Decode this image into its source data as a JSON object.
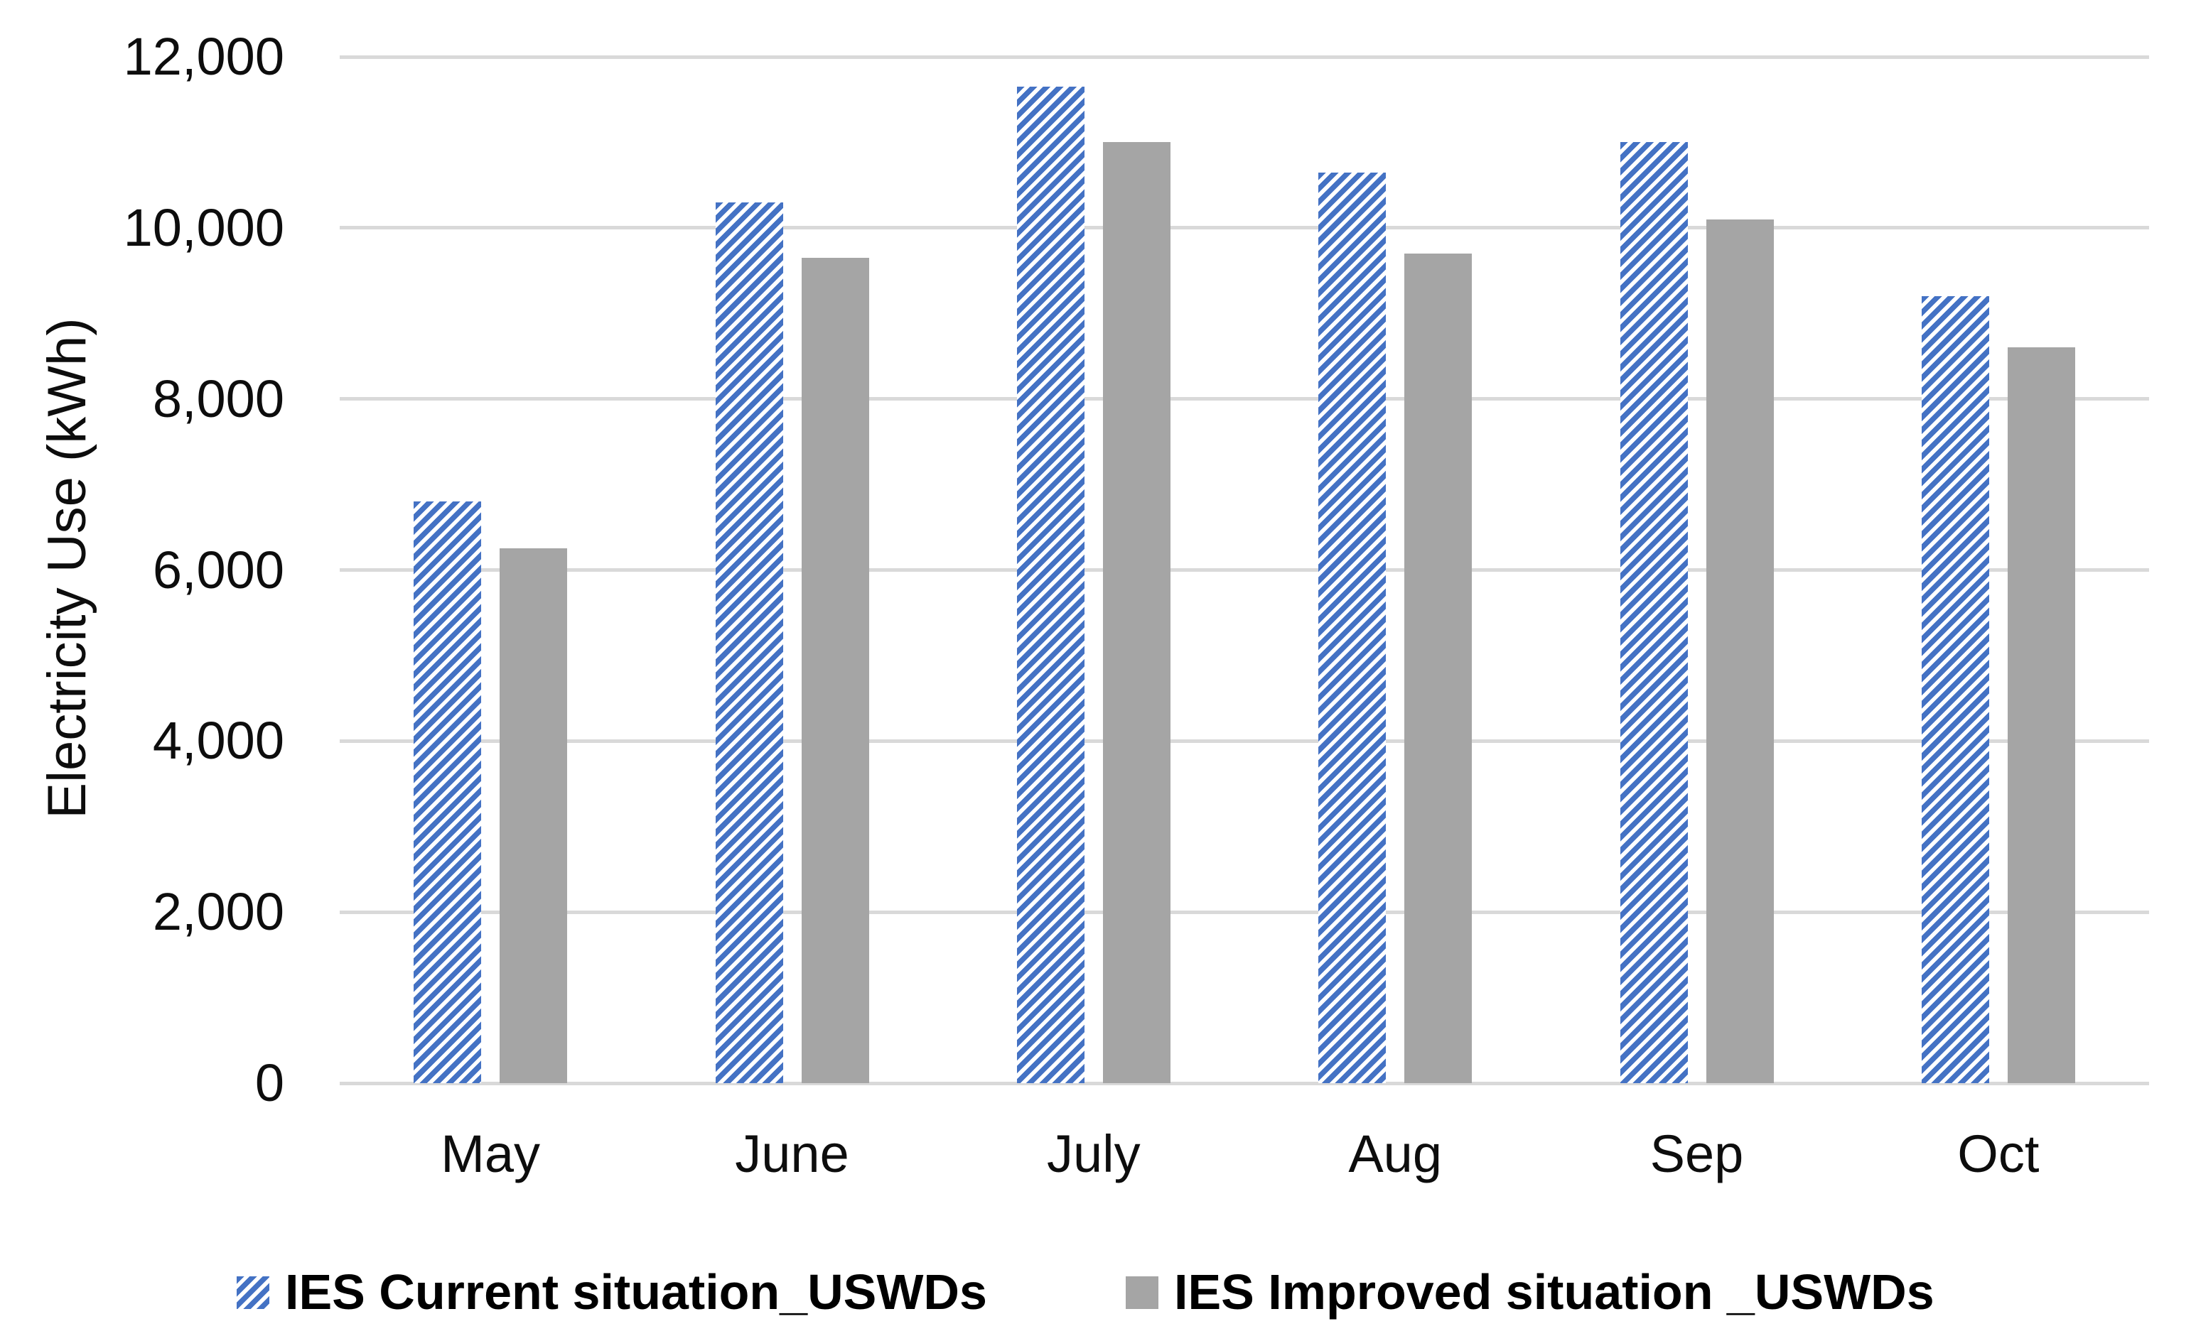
{
  "colors": {
    "series_current_blue": "#4472C4",
    "series_improved_gray": "#A5A5A5",
    "gridline_gray": "#D9D9D9",
    "text_black": "#0D0D0D"
  },
  "y_axis": {
    "title": "Electricity Use (kWh)",
    "tick_labels": [
      "12,000",
      "10,000",
      "8,000",
      "6,000",
      "4,000",
      "2,000",
      "0"
    ],
    "tick_values": [
      12000,
      10000,
      8000,
      6000,
      4000,
      2000,
      0
    ]
  },
  "legend": {
    "current_label": "IES Current situation_USWDs",
    "improved_label": "IES Improved situation _USWDs"
  },
  "chart_data": {
    "type": "bar",
    "categories": [
      "May",
      "June",
      "July",
      "Aug",
      "Sep",
      "Oct"
    ],
    "series": [
      {
        "name": "IES Current situation_USWDs",
        "style": "hatched-blue",
        "values": [
          6800,
          10300,
          11650,
          10650,
          11000,
          9200
        ]
      },
      {
        "name": "IES Improved situation _USWDs",
        "style": "solid-gray",
        "values": [
          6250,
          9650,
          11000,
          9700,
          10100,
          8600
        ]
      }
    ],
    "title": "",
    "xlabel": "",
    "ylabel": "Electricity Use (kWh)",
    "ylim": [
      0,
      12000
    ],
    "ytick_step": 2000,
    "grid": "horizontal",
    "legend_position": "bottom"
  }
}
